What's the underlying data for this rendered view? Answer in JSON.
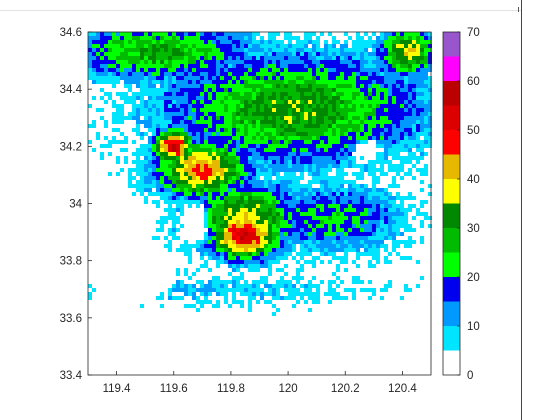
{
  "chart_data": {
    "type": "heatmap",
    "title": "",
    "xlabel": "",
    "ylabel": "",
    "xlim": [
      119.3,
      120.5
    ],
    "ylim": [
      33.4,
      34.6
    ],
    "x_ticks": [
      119.4,
      119.6,
      119.8,
      120,
      120.2,
      120.4
    ],
    "x_tick_labels": [
      "119.4",
      "119.6",
      "119.8",
      "120",
      "120.2",
      "120.4"
    ],
    "y_ticks": [
      33.4,
      33.6,
      33.8,
      34,
      34.2,
      34.4,
      34.6
    ],
    "y_tick_labels": [
      "33.4",
      "33.6",
      "33.8",
      "34",
      "34.2",
      "34.4",
      "34.6"
    ],
    "grid": false,
    "colorbar": {
      "position": "right",
      "ticks": [
        0,
        10,
        20,
        30,
        40,
        50,
        60,
        70
      ],
      "tick_labels": [
        "0",
        "10",
        "20",
        "30",
        "40",
        "50",
        "60",
        "70"
      ],
      "range": [
        0,
        70
      ],
      "bins": [
        {
          "from": 0,
          "to": 5,
          "color": "#ffffff"
        },
        {
          "from": 5,
          "to": 10,
          "color": "#00e5ff"
        },
        {
          "from": 10,
          "to": 15,
          "color": "#0099ff"
        },
        {
          "from": 15,
          "to": 20,
          "color": "#0000ee"
        },
        {
          "from": 20,
          "to": 25,
          "color": "#00ff00"
        },
        {
          "from": 25,
          "to": 30,
          "color": "#00bb00"
        },
        {
          "from": 30,
          "to": 35,
          "color": "#008800"
        },
        {
          "from": 35,
          "to": 40,
          "color": "#ffff00"
        },
        {
          "from": 40,
          "to": 45,
          "color": "#e6b800"
        },
        {
          "from": 45,
          "to": 50,
          "color": "#ff0000"
        },
        {
          "from": 50,
          "to": 55,
          "color": "#dd0000"
        },
        {
          "from": 55,
          "to": 60,
          "color": "#bb0000"
        },
        {
          "from": 60,
          "to": 65,
          "color": "#ff00ff"
        },
        {
          "from": 65,
          "to": 70,
          "color": "#9955cc"
        }
      ]
    },
    "field": {
      "description_free": true,
      "reflectivity_blobs": [
        {
          "lon": 120.02,
          "lat": 34.33,
          "rx": 0.45,
          "ry": 0.19,
          "peak": 33
        },
        {
          "lon": 119.55,
          "lat": 34.53,
          "rx": 0.32,
          "ry": 0.1,
          "peak": 30
        },
        {
          "lon": 119.85,
          "lat": 33.95,
          "rx": 0.19,
          "ry": 0.12,
          "peak": 38
        },
        {
          "lon": 119.85,
          "lat": 33.89,
          "rx": 0.12,
          "ry": 0.085,
          "peak": 55
        },
        {
          "lon": 119.7,
          "lat": 34.12,
          "rx": 0.16,
          "ry": 0.1,
          "peak": 46
        },
        {
          "lon": 119.6,
          "lat": 34.2,
          "rx": 0.07,
          "ry": 0.06,
          "peak": 54
        },
        {
          "lon": 120.42,
          "lat": 34.53,
          "rx": 0.1,
          "ry": 0.08,
          "peak": 40
        },
        {
          "lon": 120.15,
          "lat": 33.95,
          "rx": 0.25,
          "ry": 0.12,
          "peak": 22
        },
        {
          "lon": 119.8,
          "lat": 33.7,
          "rx": 0.52,
          "ry": 0.055,
          "peak": 9
        }
      ],
      "clear_regions": [
        {
          "lon": 119.45,
          "lat": 33.74,
          "rx": 0.16,
          "ry": 0.1
        },
        {
          "lon": 119.67,
          "lat": 33.93,
          "rx": 0.06,
          "ry": 0.09
        },
        {
          "lon": 120.28,
          "lat": 33.56,
          "rx": 0.28,
          "ry": 0.12
        },
        {
          "lon": 120.28,
          "lat": 34.18,
          "rx": 0.06,
          "ry": 0.05
        }
      ]
    }
  }
}
